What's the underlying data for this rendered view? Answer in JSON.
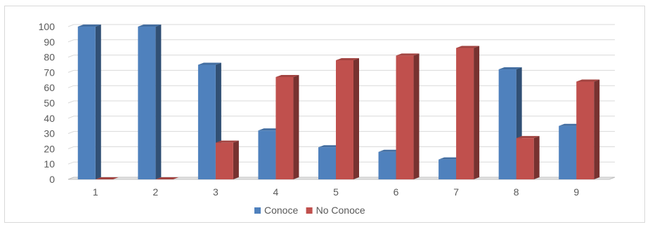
{
  "chart_data": {
    "type": "bar",
    "categories": [
      "1",
      "2",
      "3",
      "4",
      "5",
      "6",
      "7",
      "8",
      "9"
    ],
    "series": [
      {
        "name": "Conoce",
        "color": "#4F81BD",
        "values": [
          100,
          100,
          75,
          32,
          21,
          18,
          13,
          72,
          35
        ]
      },
      {
        "name": "No Conoce",
        "color": "#C0504D",
        "values": [
          0,
          0,
          24,
          67,
          78,
          81,
          86,
          27,
          64
        ]
      }
    ],
    "ylim": [
      0,
      100
    ],
    "yticks": [
      "0",
      "10",
      "20",
      "30",
      "40",
      "50",
      "60",
      "70",
      "80",
      "90",
      "100"
    ],
    "grid": true,
    "legend_position": "bottom",
    "style": "3d-clustered-column"
  }
}
